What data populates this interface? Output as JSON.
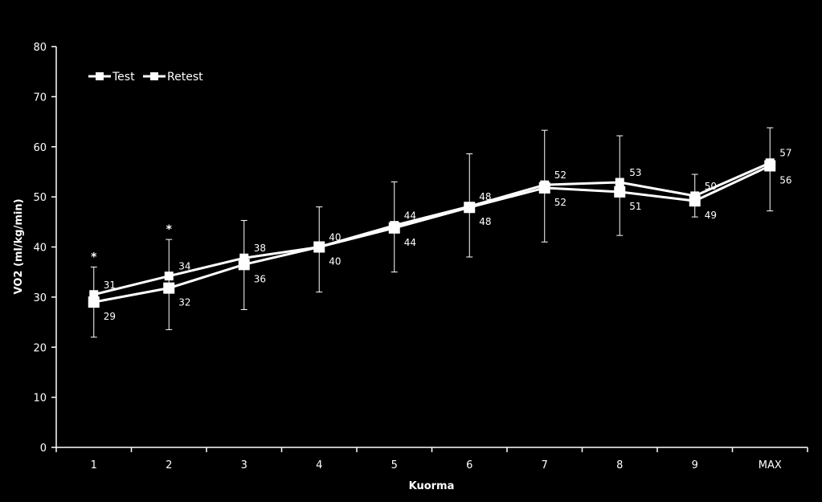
{
  "chart_data": {
    "type": "line",
    "xlabel": "Kuorma",
    "ylabel": "VO2 (ml/kg/min)",
    "ylim": [
      0,
      80
    ],
    "yticks": [
      0,
      10,
      20,
      30,
      40,
      50,
      60,
      70,
      80
    ],
    "categories": [
      "1",
      "2",
      "3",
      "4",
      "5",
      "6",
      "7",
      "8",
      "9",
      "MAX"
    ],
    "legend_position": "top-left",
    "grid": false,
    "series": [
      {
        "name": "Test",
        "values": [
          30.5,
          34.2,
          37.8,
          40.0,
          44.3,
          48.1,
          52.4,
          52.9,
          50.2,
          56.8
        ],
        "labels": [
          "31",
          "34",
          "38",
          "40",
          "44",
          "48",
          "52",
          "53",
          "50",
          "57"
        ]
      },
      {
        "name": "Retest",
        "values": [
          29.0,
          31.8,
          36.5,
          40.0,
          43.8,
          47.9,
          51.8,
          51.0,
          49.2,
          56.2
        ],
        "labels": [
          "29",
          "32",
          "36",
          "40",
          "44",
          "48",
          "52",
          "51",
          "49",
          "56"
        ]
      }
    ],
    "error_bars": [
      {
        "low": 22.0,
        "high": 36.0
      },
      {
        "low": 23.5,
        "high": 41.5
      },
      {
        "low": 27.5,
        "high": 45.3
      },
      {
        "low": 31.0,
        "high": 48.0
      },
      {
        "low": 35.0,
        "high": 53.0
      },
      {
        "low": 38.0,
        "high": 58.6
      },
      {
        "low": 41.0,
        "high": 63.3
      },
      {
        "low": 42.3,
        "high": 62.2
      },
      {
        "low": 46.0,
        "high": 54.5
      },
      {
        "low": 47.2,
        "high": 63.8
      }
    ],
    "significance_markers": [
      {
        "category": "1",
        "symbol": "*"
      },
      {
        "category": "2",
        "symbol": "*"
      }
    ]
  }
}
